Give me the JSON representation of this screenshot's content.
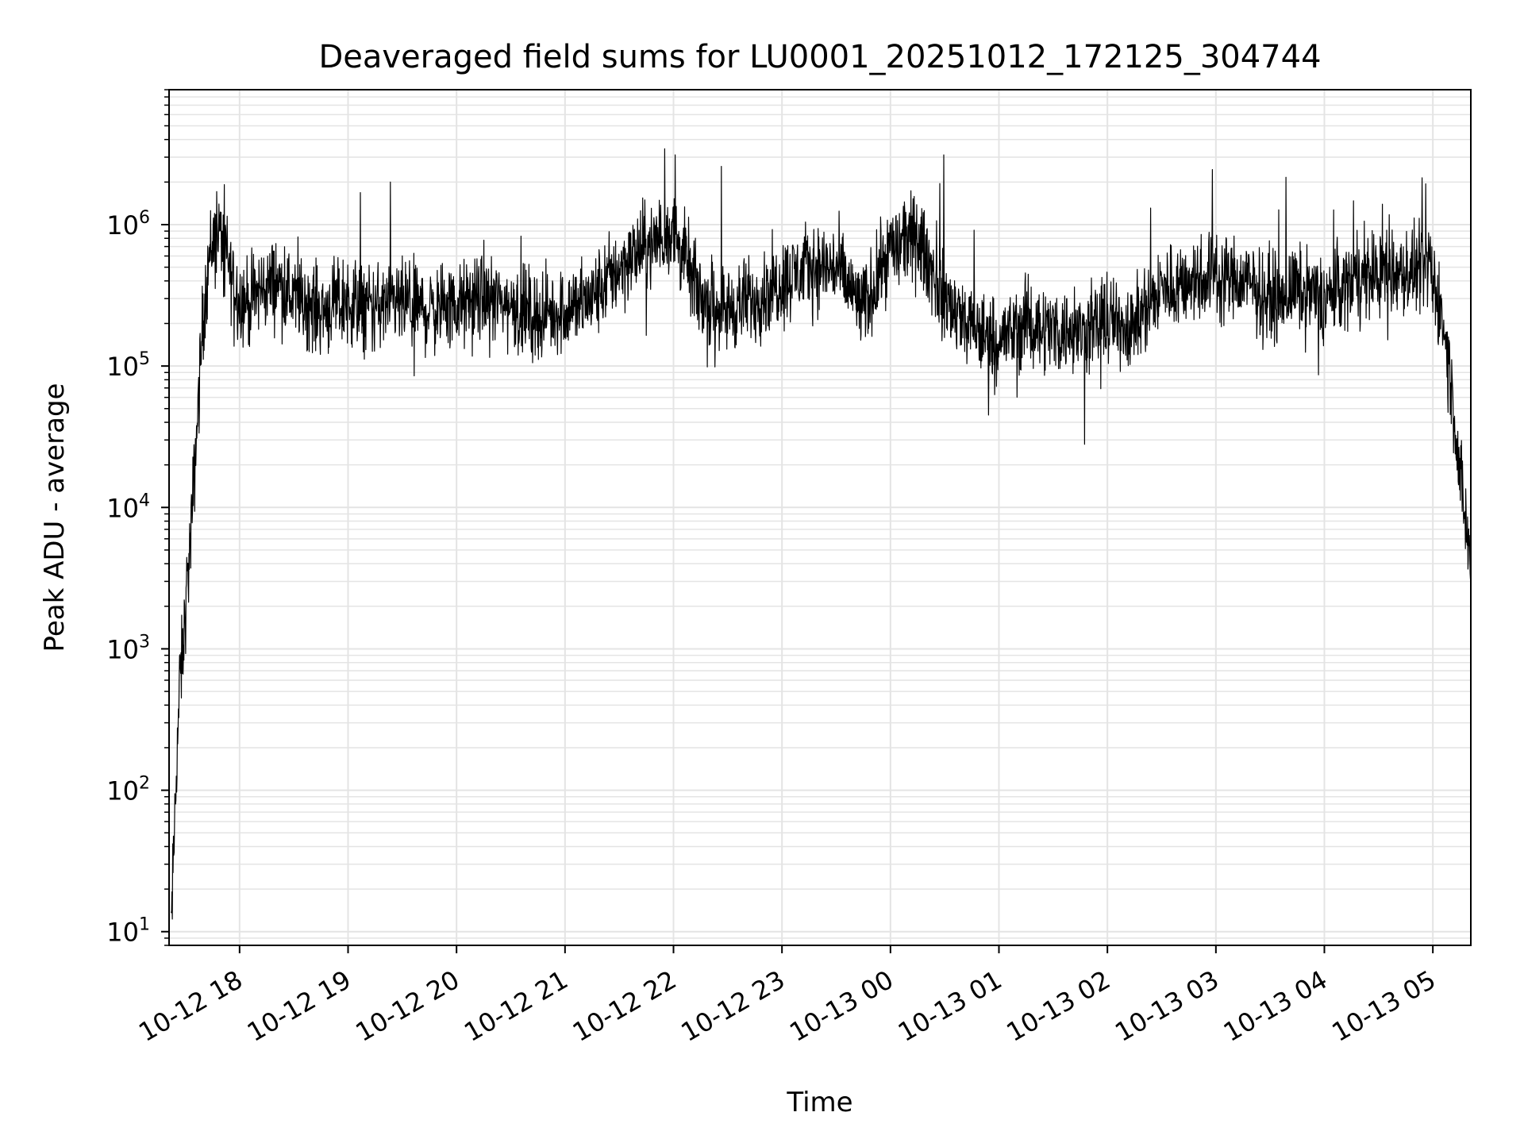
{
  "chart_data": {
    "type": "line",
    "title": "Deaveraged field sums for LU0001_20251012_172125_304744",
    "xlabel": "Time",
    "ylabel": "Peak ADU - average",
    "yscale": "log",
    "ylim": [
      8,
      9000000
    ],
    "xlim_hours_from_1700": [
      0.35,
      12.35
    ],
    "x_tick_hours_from_1700": [
      1,
      2,
      3,
      4,
      5,
      6,
      7,
      8,
      9,
      10,
      11,
      12
    ],
    "x_tick_labels": [
      "10-12 18",
      "10-12 19",
      "10-12 20",
      "10-12 21",
      "10-12 22",
      "10-12 23",
      "10-13 00",
      "10-13 01",
      "10-13 02",
      "10-13 03",
      "10-13 04",
      "10-13 05"
    ],
    "y_tick_exponents": [
      1,
      2,
      3,
      4,
      5,
      6
    ],
    "y_tick_base": "10",
    "grid": true,
    "line_color": "#000000",
    "series": [
      {
        "name": "field sum",
        "x_hours_from_1700": [
          0.37,
          0.39,
          0.41,
          0.43,
          0.45,
          0.48,
          0.51,
          0.55,
          0.6,
          0.66,
          0.72,
          0.78,
          0.85,
          0.9,
          1.0,
          1.1,
          1.2,
          1.35,
          1.5,
          1.75,
          2.0,
          2.25,
          2.5,
          2.75,
          3.0,
          3.25,
          3.5,
          3.75,
          4.0,
          4.25,
          4.5,
          4.75,
          5.0,
          5.25,
          5.5,
          5.75,
          6.0,
          6.25,
          6.5,
          6.75,
          7.0,
          7.25,
          7.5,
          7.75,
          8.0,
          8.25,
          8.5,
          8.75,
          9.0,
          9.25,
          9.5,
          9.75,
          10.0,
          10.25,
          10.5,
          10.75,
          11.0,
          11.25,
          11.5,
          11.75,
          11.95,
          12.05,
          12.12,
          12.18,
          12.24,
          12.3,
          12.35
        ],
        "y_median": [
          10,
          30,
          100,
          250,
          600,
          1000,
          2500,
          6000,
          30000,
          200000,
          600000,
          900000,
          800000,
          500000,
          300000,
          280000,
          350000,
          400000,
          300000,
          250000,
          280000,
          260000,
          270000,
          250000,
          260000,
          300000,
          270000,
          220000,
          250000,
          300000,
          500000,
          700000,
          900000,
          300000,
          250000,
          300000,
          400000,
          500000,
          500000,
          250000,
          700000,
          800000,
          300000,
          180000,
          150000,
          200000,
          180000,
          170000,
          200000,
          200000,
          350000,
          400000,
          450000,
          400000,
          300000,
          350000,
          300000,
          400000,
          450000,
          450000,
          500000,
          300000,
          150000,
          60000,
          20000,
          8000,
          4000
        ],
        "y_noise_log10_amplitude": 0.55
      }
    ]
  }
}
